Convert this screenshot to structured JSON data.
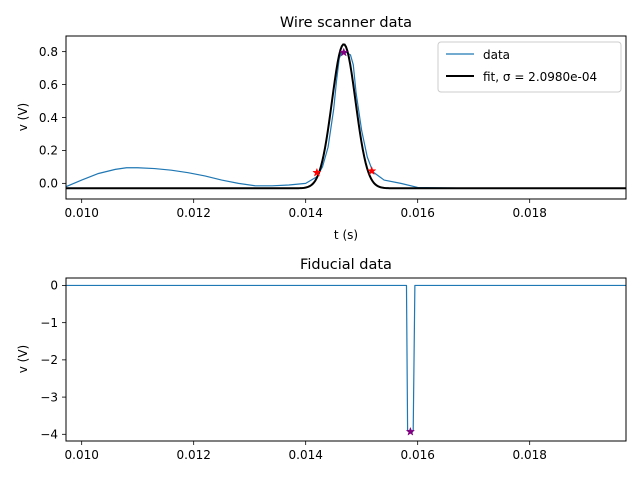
{
  "chart_data": [
    {
      "type": "line",
      "title": "Wire scanner data",
      "xlabel": "t (s)",
      "ylabel": "v (V)",
      "xlim": [
        0.00972,
        0.01972
      ],
      "ylim": [
        -0.095,
        0.895
      ],
      "xticks": [
        0.01,
        0.012,
        0.014,
        0.016,
        0.018
      ],
      "xtick_labels": [
        "0.010",
        "0.012",
        "0.014",
        "0.016",
        "0.018"
      ],
      "yticks": [
        0.0,
        0.2,
        0.4,
        0.6,
        0.8
      ],
      "ytick_labels": [
        "0.0",
        "0.2",
        "0.4",
        "0.6",
        "0.8"
      ],
      "grid": false,
      "legend": {
        "position": "top-right"
      },
      "colors": {
        "data": "#1f77b4",
        "fit": "#000000",
        "edge_marker": "#ff0000",
        "peak_marker": "#800080"
      },
      "series": [
        {
          "name": "data",
          "kind": "line",
          "x": [
            0.00972,
            0.01,
            0.0103,
            0.0106,
            0.0108,
            0.011,
            0.0113,
            0.0116,
            0.0119,
            0.0122,
            0.0125,
            0.0128,
            0.0131,
            0.0134,
            0.0137,
            0.014,
            0.0142,
            0.0143,
            0.0144,
            0.0145,
            0.01455,
            0.0146,
            0.01465,
            0.0147,
            0.01475,
            0.0148,
            0.01485,
            0.0149,
            0.015,
            0.0151,
            0.0152,
            0.0154,
            0.0157,
            0.016,
            0.017,
            0.018,
            0.0185,
            0.019,
            0.0195,
            0.01972
          ],
          "y": [
            -0.02,
            0.02,
            0.06,
            0.085,
            0.095,
            0.095,
            0.09,
            0.08,
            0.065,
            0.045,
            0.02,
            0.0,
            -0.015,
            -0.015,
            -0.01,
            0.0,
            0.04,
            0.1,
            0.22,
            0.45,
            0.62,
            0.76,
            0.8,
            0.8,
            0.79,
            0.78,
            0.72,
            0.55,
            0.32,
            0.16,
            0.07,
            0.02,
            0.0,
            -0.025,
            -0.03,
            -0.03,
            -0.03,
            -0.03,
            -0.03,
            -0.03
          ]
        },
        {
          "name": "fit, σ = 2.0980e-04",
          "kind": "gaussian",
          "baseline": -0.03,
          "amplitude": 0.875,
          "center": 0.01468,
          "sigma": 0.0002098,
          "x_range": [
            0.00972,
            0.01972
          ]
        }
      ],
      "markers": [
        {
          "role": "edge",
          "x": 0.0142,
          "y": 0.065
        },
        {
          "role": "edge",
          "x": 0.01518,
          "y": 0.075
        },
        {
          "role": "peak",
          "x": 0.01468,
          "y": 0.795
        }
      ]
    },
    {
      "type": "line",
      "title": "Fiducial data",
      "xlabel": "",
      "ylabel": "v (V)",
      "xlim": [
        0.00972,
        0.01972
      ],
      "ylim": [
        -4.18,
        0.2
      ],
      "xticks": [
        0.01,
        0.012,
        0.014,
        0.016,
        0.018
      ],
      "xtick_labels": [
        "0.010",
        "0.012",
        "0.014",
        "0.016",
        "0.018"
      ],
      "yticks": [
        0,
        -1,
        -2,
        -3,
        -4
      ],
      "ytick_labels": [
        "0",
        "−1",
        "−2",
        "−3",
        "−4"
      ],
      "grid": false,
      "colors": {
        "data": "#1f77b4",
        "peak_marker": "#800080"
      },
      "series": [
        {
          "kind": "line",
          "x": [
            0.00972,
            0.0158,
            0.01582,
            0.01585,
            0.0159,
            0.01592,
            0.01595,
            0.01972
          ],
          "y": [
            0.0,
            0.0,
            -3.9,
            -3.9,
            -3.95,
            -3.9,
            0.0,
            0.0
          ]
        }
      ],
      "markers": [
        {
          "role": "peak",
          "x": 0.01587,
          "y": -3.93
        }
      ]
    }
  ]
}
